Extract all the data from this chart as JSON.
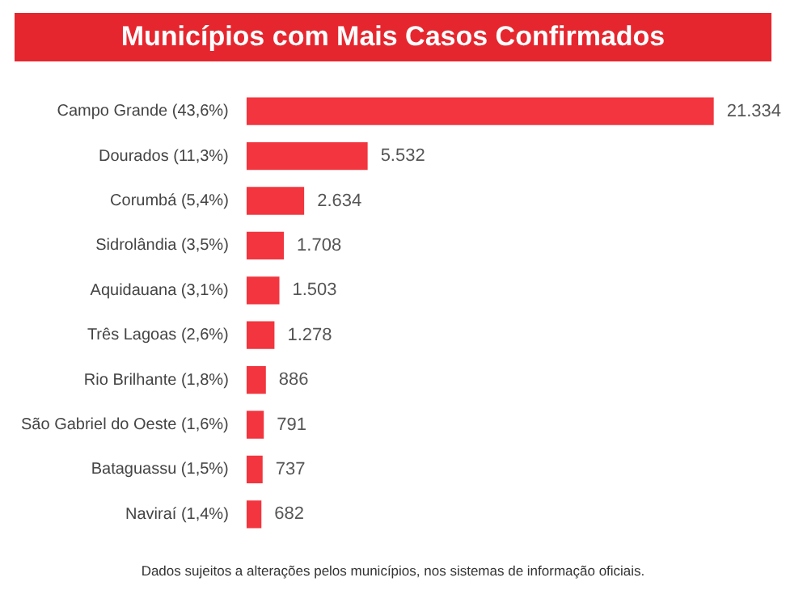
{
  "chart_data": {
    "type": "bar",
    "orientation": "horizontal",
    "title": "Municípios com Mais Casos Confirmados",
    "categories": [
      "Campo Grande (43,6%)",
      "Dourados (11,3%)",
      "Corumbá (5,4%)",
      "Sidrolândia (3,5%)",
      "Aquidauana (3,1%)",
      "Três Lagoas (2,6%)",
      "Rio Brilhante (1,8%)",
      "São Gabriel do Oeste (1,6%)",
      "Bataguassu (1,5%)",
      "Naviraí (1,4%)"
    ],
    "values": [
      21334,
      5532,
      2634,
      1708,
      1503,
      1278,
      886,
      791,
      737,
      682
    ],
    "value_labels": [
      "21.334",
      "5.532",
      "2.634",
      "1.708",
      "1.503",
      "1.278",
      "886",
      "791",
      "737",
      "682"
    ],
    "color": "#f2353e",
    "annotations": [
      "Dados sujeitos a alterações pelos municípios, nos sistemas de informação oficiais."
    ]
  }
}
